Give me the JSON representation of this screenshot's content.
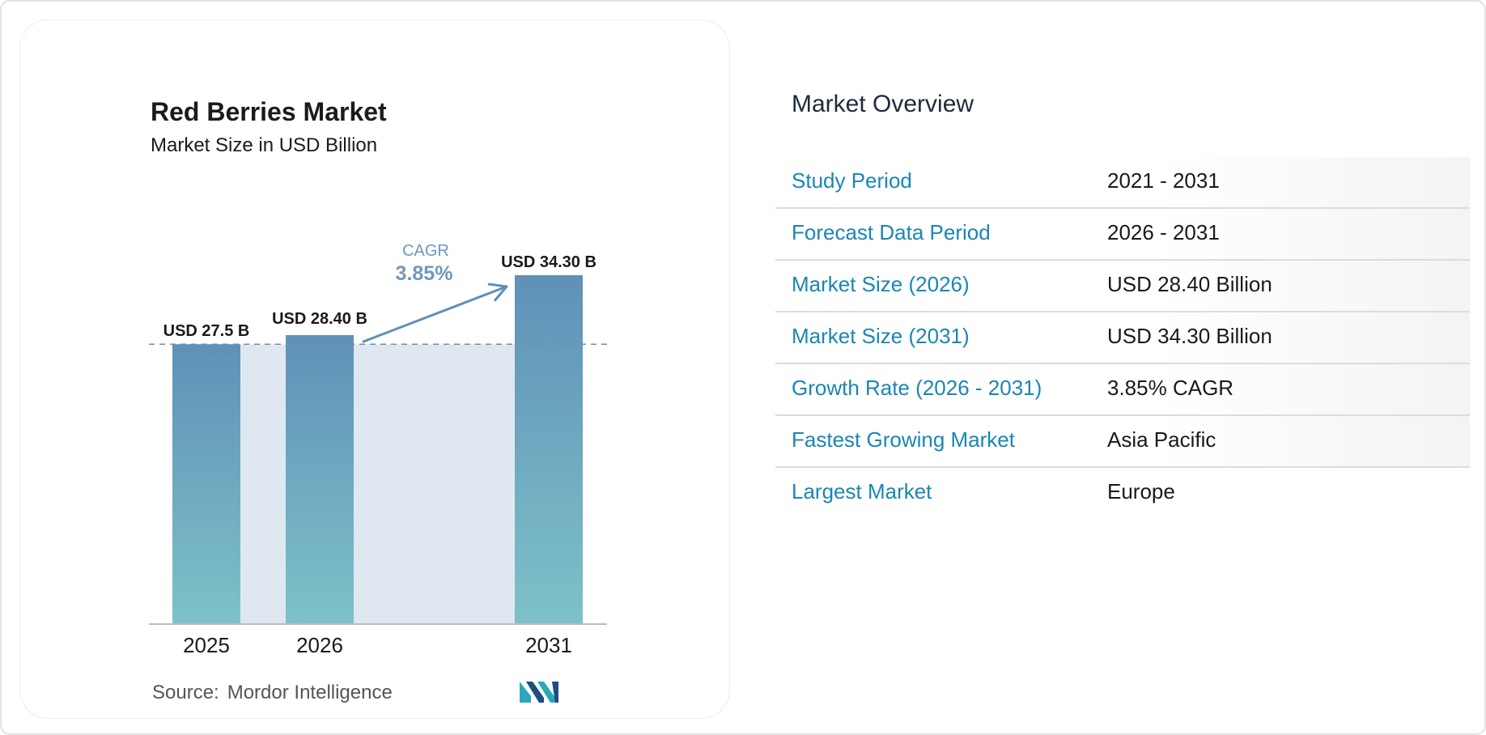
{
  "chart_data": {
    "type": "bar",
    "title": "Red Berries Market",
    "subtitle": "Market Size in USD Billion",
    "categories": [
      "2025",
      "2026",
      "2031"
    ],
    "values": [
      27.5,
      28.4,
      34.3
    ],
    "data_labels": [
      "USD 27.5 B",
      "USD 28.40 B",
      "USD 34.30 B"
    ],
    "ylim": [
      0,
      34.3
    ],
    "grid": false,
    "reference_line_value": 27.5,
    "annotation": {
      "label": "CAGR",
      "value": "3.85%",
      "from": "2026",
      "to": "2031"
    },
    "colors": {
      "bar_top": "#5f91b8",
      "bar_bottom": "#7ec1c8",
      "band": "#dfe8f1",
      "arrow": "#5f8fb5",
      "annotation_label": "#6f98bd"
    }
  },
  "source": {
    "label": "Source:",
    "name": "Mordor Intelligence"
  },
  "logo": {
    "icon": "mordor-intelligence-logo",
    "colors": [
      "#1c4e80",
      "#2aa8b8"
    ]
  },
  "overview": {
    "title": "Market Overview",
    "rows": [
      {
        "key": "Study Period",
        "value": "2021 - 2031"
      },
      {
        "key": "Forecast Data Period",
        "value": "2026 - 2031"
      },
      {
        "key": "Market Size (2026)",
        "value": "USD 28.40 Billion"
      },
      {
        "key": "Market Size (2031)",
        "value": "USD 34.30 Billion"
      },
      {
        "key": "Growth Rate (2026 - 2031)",
        "value": "3.85% CAGR"
      },
      {
        "key": "Fastest Growing Market",
        "value": "Asia Pacific"
      },
      {
        "key": "Largest Market",
        "value": "Europe"
      }
    ],
    "key_color": "#1a86b3"
  }
}
